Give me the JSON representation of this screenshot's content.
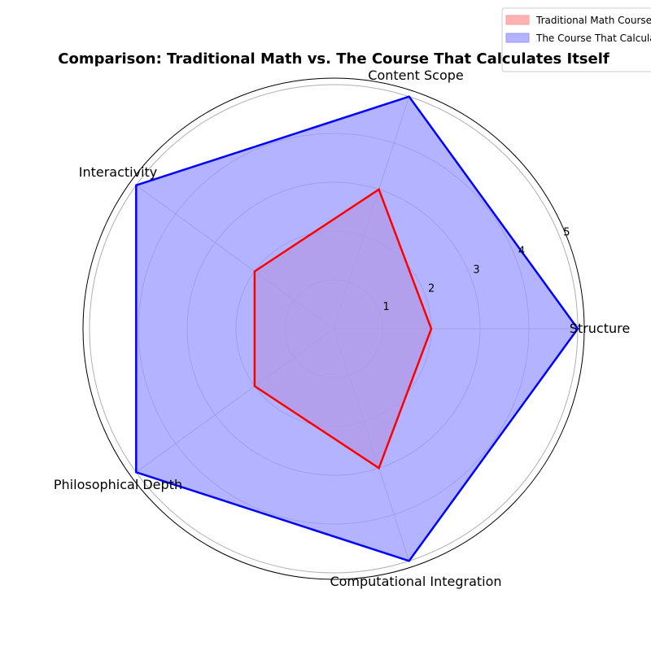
{
  "chart_data": {
    "type": "radar",
    "title": "Comparison: Traditional Math vs. The Course That Calculates Itself",
    "categories": [
      "Structure",
      "Content Scope",
      "Interactivity",
      "Philosophical Depth",
      "Computational Integration"
    ],
    "rticks": [
      "1",
      "2",
      "3",
      "4",
      "5"
    ],
    "rlim": [
      0,
      5
    ],
    "grid": true,
    "legend_position": "top-right",
    "series": [
      {
        "name": "Traditional Math Course",
        "values": [
          2,
          3,
          2,
          2,
          3
        ],
        "color": "#ff0000",
        "fill": "#ff9999"
      },
      {
        "name": "The Course That Calculates Itself",
        "values": [
          5,
          5,
          5,
          5,
          5
        ],
        "color": "#0000ff",
        "fill": "#9999ff"
      }
    ]
  }
}
